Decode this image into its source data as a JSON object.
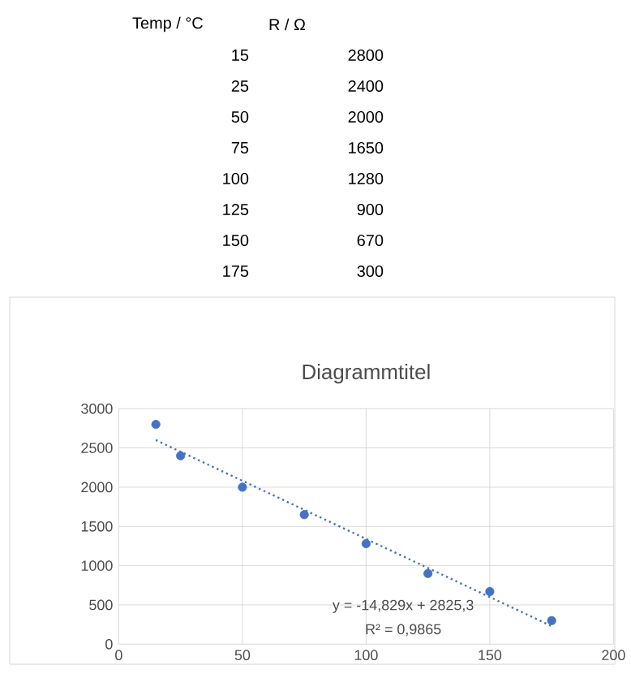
{
  "chart_data": {
    "type": "scatter",
    "title": "Diagrammtitel",
    "x": [
      15,
      25,
      50,
      75,
      100,
      125,
      150,
      175
    ],
    "series": [
      {
        "color": "#4472c4",
        "marker": "circle",
        "values": [
          2800,
          2400,
          2000,
          1650,
          1280,
          900,
          670,
          300
        ]
      },
      {
        "type": "line",
        "color": "#4472c4",
        "line_style": "dotted",
        "marker": "none",
        "x": [
          15,
          175
        ],
        "values": [
          2600,
          230
        ]
      }
    ],
    "annotations": [
      "Temp / °C",
      "R / Ω",
      "15",
      "2800",
      "25",
      "2400",
      "50",
      "2000",
      "75",
      "1650",
      "100",
      "1280",
      "125",
      "900",
      "150",
      "670",
      "175",
      "300",
      "y = -14,829x + 2825,3",
      "R² = 0,9865"
    ],
    "xlim": [
      0,
      200
    ],
    "xticks": [
      0,
      50,
      100,
      150,
      200
    ],
    "ylim": [
      0,
      3000
    ],
    "yticks": [
      0,
      500,
      1000,
      1500,
      2000,
      2500,
      3000
    ],
    "grid": true
  }
}
